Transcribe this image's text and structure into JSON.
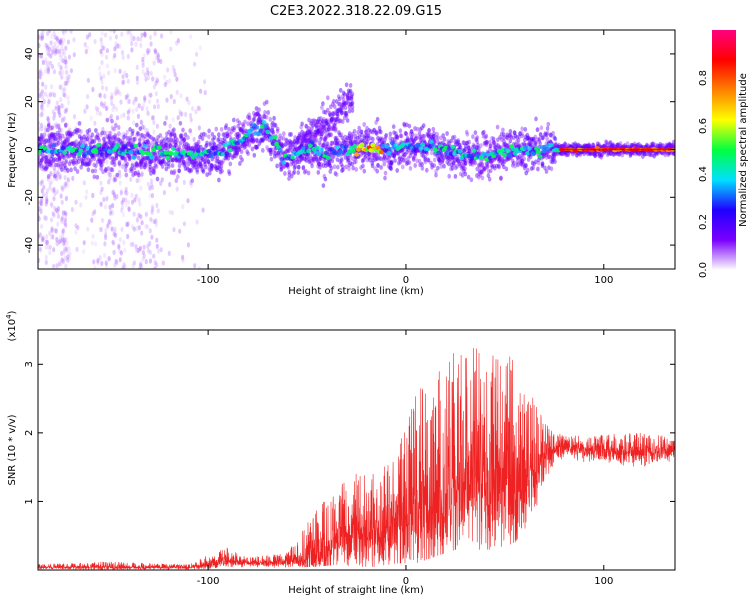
{
  "title": "C2E3.2022.318.22.09.G15",
  "chart_data": [
    {
      "type": "heatmap",
      "xlabel": "Height of straight line (km)",
      "ylabel": "Frequency (Hz)",
      "xlim": [
        -186,
        136
      ],
      "ylim": [
        -50,
        50
      ],
      "x_ticks": [
        -100,
        0,
        100
      ],
      "y_ticks": [
        -40,
        -20,
        0,
        20,
        40
      ],
      "colorbar": {
        "label": "Normalized spectral amplitude",
        "range": [
          0,
          1
        ],
        "ticks": [
          0.0,
          0.2,
          0.4,
          0.6,
          0.8
        ],
        "colors": [
          "#ffffff",
          "#7a00ff",
          "#1f00ff",
          "#00e0ff",
          "#00ff40",
          "#ffff00",
          "#ff8000",
          "#ff0000",
          "#ff0080"
        ]
      },
      "dominant_frequency_track": [
        {
          "x": -186,
          "y": 0
        },
        {
          "x": -150,
          "y": 0
        },
        {
          "x": -130,
          "y": -1
        },
        {
          "x": -110,
          "y": -2
        },
        {
          "x": -95,
          "y": -1
        },
        {
          "x": -85,
          "y": 3
        },
        {
          "x": -78,
          "y": 8
        },
        {
          "x": -72,
          "y": 10
        },
        {
          "x": -68,
          "y": 6
        },
        {
          "x": -62,
          "y": -3
        },
        {
          "x": -55,
          "y": -1
        },
        {
          "x": -48,
          "y": 0
        },
        {
          "x": -40,
          "y": -2
        },
        {
          "x": -30,
          "y": 0
        },
        {
          "x": -20,
          "y": 1
        },
        {
          "x": -10,
          "y": 0
        },
        {
          "x": 0,
          "y": 2
        },
        {
          "x": 10,
          "y": 1
        },
        {
          "x": 20,
          "y": 0
        },
        {
          "x": 30,
          "y": -3
        },
        {
          "x": 40,
          "y": -2
        },
        {
          "x": 50,
          "y": -1
        },
        {
          "x": 60,
          "y": 0
        },
        {
          "x": 75,
          "y": 0
        },
        {
          "x": 136,
          "y": 0
        }
      ],
      "secondary_branch": [
        {
          "x": -55,
          "y": 0
        },
        {
          "x": -45,
          "y": 8
        },
        {
          "x": -38,
          "y": 12
        },
        {
          "x": -32,
          "y": 18
        },
        {
          "x": -27,
          "y": 22
        }
      ]
    },
    {
      "type": "line",
      "xlabel": "Height of straight line (km)",
      "ylabel": "SNR (10 * v/v)",
      "y_multiplier": "(x10",
      "y_multiplier_exp": "4",
      "y_multiplier_close": ")",
      "xlim": [
        -186,
        136
      ],
      "ylim": [
        0,
        3.5
      ],
      "x_ticks": [
        -100,
        0,
        100
      ],
      "y_ticks": [
        1,
        2,
        3
      ],
      "series_color": "#ee2222",
      "envelope": {
        "x": [
          -186,
          -150,
          -110,
          -100,
          -90,
          -80,
          -60,
          -45,
          -35,
          -25,
          -15,
          -5,
          5,
          15,
          25,
          35,
          45,
          55,
          65,
          72,
          80,
          100,
          120,
          136
        ],
        "mean": [
          0.04,
          0.04,
          0.04,
          0.08,
          0.14,
          0.1,
          0.12,
          0.2,
          0.4,
          0.55,
          0.5,
          0.6,
          0.9,
          1.0,
          1.2,
          1.3,
          1.3,
          1.3,
          1.4,
          1.7,
          1.8,
          1.75,
          1.72,
          1.75
        ],
        "peak": [
          0.08,
          0.12,
          0.08,
          0.22,
          0.33,
          0.18,
          0.25,
          0.9,
          1.2,
          1.5,
          1.4,
          1.7,
          2.6,
          3.0,
          3.2,
          3.35,
          3.2,
          3.1,
          2.5,
          2.1,
          1.95,
          1.98,
          2.0,
          1.95
        ],
        "trough": [
          0.01,
          0.01,
          0.01,
          0.02,
          0.05,
          0.03,
          0.04,
          0.05,
          0.08,
          0.05,
          0.05,
          0.1,
          0.1,
          0.2,
          0.3,
          0.3,
          0.3,
          0.4,
          0.8,
          1.4,
          1.6,
          1.55,
          1.5,
          1.6
        ]
      }
    }
  ]
}
